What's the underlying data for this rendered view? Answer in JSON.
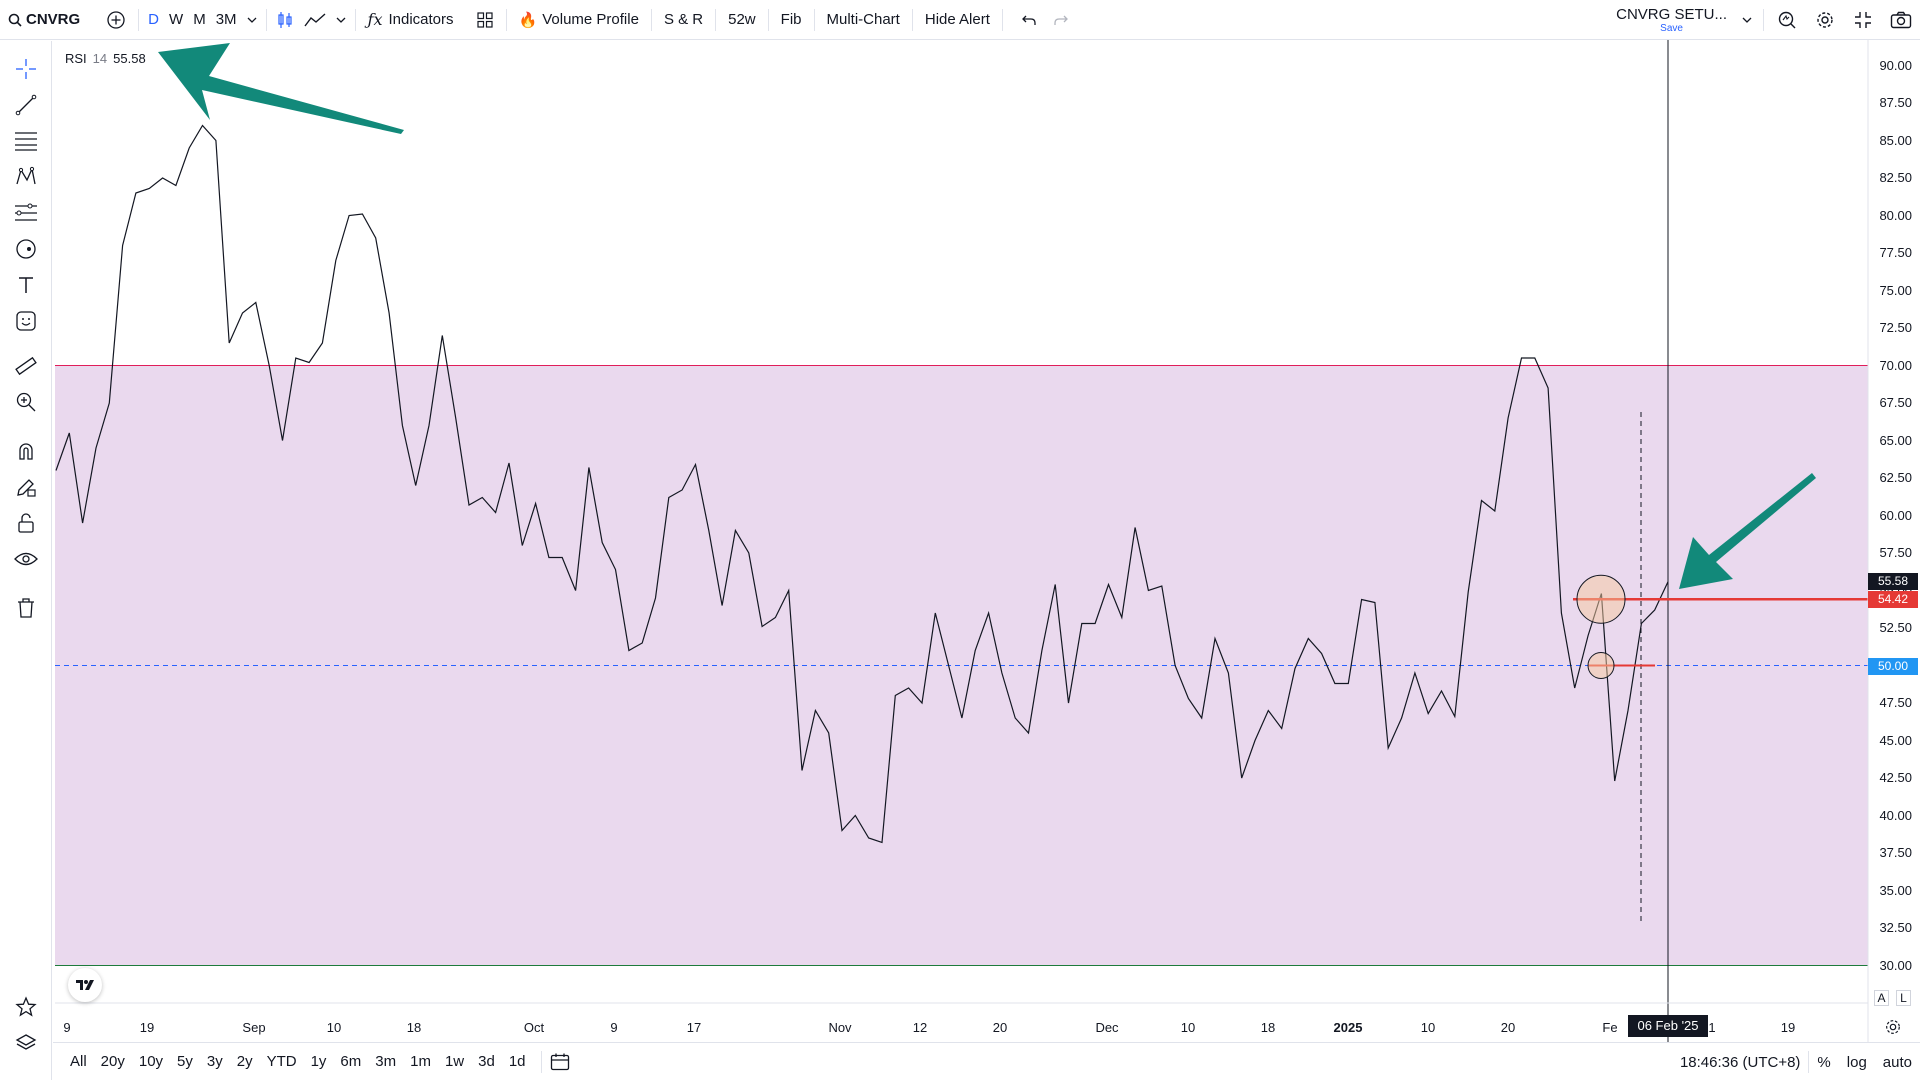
{
  "topbar": {
    "symbol": "CNVRG",
    "intervals": [
      "D",
      "W",
      "M",
      "3M"
    ],
    "indicators_label": "Indicators",
    "volume_profile_label": "Volume Profile",
    "sr_label": "S & R",
    "w52_label": "52w",
    "fib_label": "Fib",
    "multichart_label": "Multi-Chart",
    "hide_alert_label": "Hide Alert",
    "layout_name": "CNVRG SETU...",
    "save_label": "Save"
  },
  "legend": {
    "name": "RSI",
    "length": "14",
    "value": "55.58"
  },
  "price_axis": {
    "labels": [
      "90.00",
      "87.50",
      "85.00",
      "82.50",
      "80.00",
      "77.50",
      "75.00",
      "72.50",
      "70.00",
      "67.50",
      "65.00",
      "62.50",
      "60.00",
      "57.50",
      "55.00",
      "52.50",
      "50.00",
      "47.50",
      "45.00",
      "42.50",
      "40.00",
      "37.50",
      "35.00",
      "32.50",
      "30.00"
    ],
    "current_tag": "55.58",
    "red_tag": "54.42",
    "blue_tag": "50.00",
    "toggle_a": "A",
    "toggle_l": "L"
  },
  "time_axis": {
    "labels": [
      "9",
      "19",
      "Sep",
      "10",
      "18",
      "Oct",
      "9",
      "17",
      "Nov",
      "12",
      "20",
      "Dec",
      "10",
      "18",
      "2025",
      "10",
      "20",
      "Fe",
      "1",
      "19"
    ],
    "crosshair_date": "06 Feb '25"
  },
  "bottombar": {
    "ranges": [
      "All",
      "20y",
      "10y",
      "5y",
      "3y",
      "2y",
      "YTD",
      "1y",
      "6m",
      "3m",
      "1m",
      "1w",
      "3d",
      "1d"
    ],
    "clock": "18:46:36 (UTC+8)",
    "percent_label": "%",
    "log_label": "log",
    "auto_label": "auto"
  },
  "colors": {
    "rsi_band": "#ead9ee",
    "band_line": "#e01e5a",
    "mid_line": "#2962ff",
    "arrow": "#12897a",
    "red_line": "#e53935"
  },
  "chart_data": {
    "type": "line",
    "series": [
      {
        "values": [
          63,
          65.5,
          59.5,
          64.5,
          67.5,
          78,
          81.5,
          81.8,
          82.5,
          82,
          84.5,
          86,
          85,
          71.5,
          73.5,
          74.2,
          70,
          65,
          70.5,
          70.2,
          71.5,
          77,
          80,
          80.1,
          78.5,
          73.5,
          66,
          62,
          66,
          72,
          66.5,
          60.7,
          61.2,
          60.2,
          63.5,
          58,
          60.8,
          57.2,
          57.2,
          55,
          63.2,
          58.2,
          56.4,
          51,
          51.5,
          54.5,
          61.2,
          61.7,
          63.4,
          59,
          54,
          59,
          57.5,
          52.6,
          53.2,
          55,
          43,
          47,
          45.5,
          39,
          40,
          38.5,
          38.2,
          48,
          48.5,
          47.5,
          53.5,
          50,
          46.5,
          51,
          53.5,
          49.5,
          46.5,
          45.5,
          51,
          55.4,
          47.5,
          52.8,
          52.8,
          55.4,
          53.2,
          59.2,
          55,
          55.3,
          50,
          47.8,
          46.5,
          51.8,
          49.5,
          42.5,
          45,
          47,
          45.8,
          49.8,
          51.8,
          50.8,
          48.8,
          48.8,
          54.4,
          54.2,
          44.5,
          46.5,
          49.5,
          46.8,
          48.3,
          46.6,
          54.9,
          61,
          60.3,
          66.5,
          70.5,
          70.5,
          68.5,
          53.5,
          48.5,
          52,
          54.8,
          42.3,
          47,
          52.8,
          53.7,
          55.58
        ]
      }
    ],
    "ylim": [
      30,
      90
    ],
    "bands": {
      "upper": 70,
      "lower": 30,
      "middle": 50
    }
  }
}
